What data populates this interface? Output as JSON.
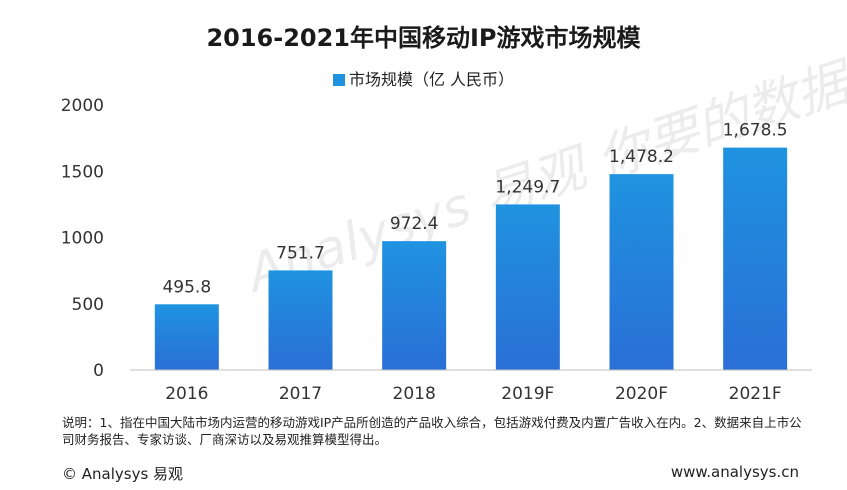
{
  "chart_data": {
    "type": "bar",
    "title": "2016-2021年中国移动IP游戏市场规模",
    "categories": [
      "2016",
      "2017",
      "2018",
      "2019F",
      "2020F",
      "2021F"
    ],
    "series": [
      {
        "name": "市场规模（亿 人民币）",
        "values": [
          495.8,
          751.7,
          972.4,
          1249.7,
          1478.2,
          1678.5
        ]
      }
    ],
    "data_labels": [
      "495.8",
      "751.7",
      "972.4",
      "1,249.7",
      "1,478.2",
      "1,678.5"
    ],
    "ylim": [
      0,
      2000
    ],
    "yticks": [
      0,
      500,
      1000,
      1500,
      2000
    ],
    "grid": false,
    "legend_position": "top-center",
    "bar_color_top": "#1f93e0",
    "bar_color_bottom": "#2a6fd6"
  },
  "note": "说明：1、指在中国大陆市场内运营的移动游戏IP产品所创造的产品收入综合，包括游戏付费及内置广告收入在内。2、数据来自上市公司财务报告、专家访谈、厂商深访以及易观推算模型得出。",
  "footer": {
    "copyright": "© Analysys 易观",
    "website": "www.analysys.cn"
  },
  "watermark": "Analysys 易观 你要的数据分析"
}
